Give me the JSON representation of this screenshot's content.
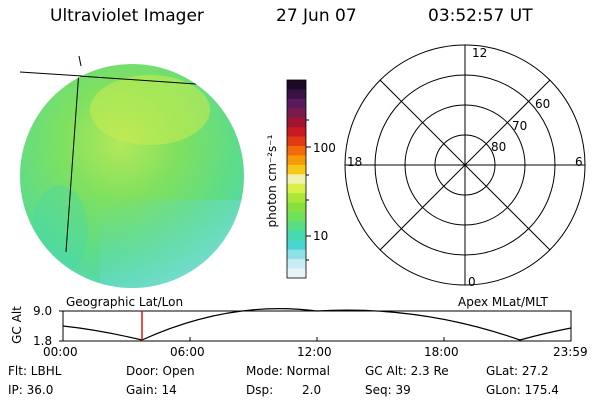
{
  "header": {
    "title": "Ultraviolet Imager",
    "date": "27 Jun 07",
    "time": "03:52:57 UT"
  },
  "colorbar": {
    "unit_label": "photon cm⁻²s⁻¹",
    "ticks": [
      "100",
      "10"
    ],
    "colors": [
      "#1a0a26",
      "#3a1247",
      "#5b1a5c",
      "#7a1a4a",
      "#a01434",
      "#c81a22",
      "#e23a12",
      "#f26a0a",
      "#f79a0a",
      "#f7c818",
      "#f2f0b0",
      "#d8f048",
      "#a8e638",
      "#86e040",
      "#6ee05a",
      "#58dc84",
      "#46d8b0",
      "#4cd4d0",
      "#8ee0e8",
      "#c8ecf2",
      "#e8f4f8"
    ]
  },
  "polar": {
    "labels": {
      "top": "12",
      "bottom": "0",
      "left": "18",
      "right": "6"
    },
    "lat_labels": [
      "60",
      "70",
      "80"
    ]
  },
  "strip": {
    "ylabel": "GC Alt",
    "yticks": [
      "9.0",
      "1.8"
    ],
    "left_title": "Geographic Lat/Lon",
    "right_title": "Apex MLat/MLT",
    "xticks": [
      "00:00",
      "06:00",
      "12:00",
      "18:00",
      "23:59"
    ]
  },
  "info": {
    "flt": "Flt: LBHL",
    "ip": "IP: 36.0",
    "door": "Door: Open",
    "gain": "Gain: 14",
    "mode": "Mode: Normal",
    "dsp_label": "Dsp:",
    "dsp_value": "2.0",
    "gcalt": "GC Alt: 2.3 Re",
    "seq": "Seq: 39",
    "glat": "GLat:  27.2",
    "glon": "GLon: 175.4"
  }
}
